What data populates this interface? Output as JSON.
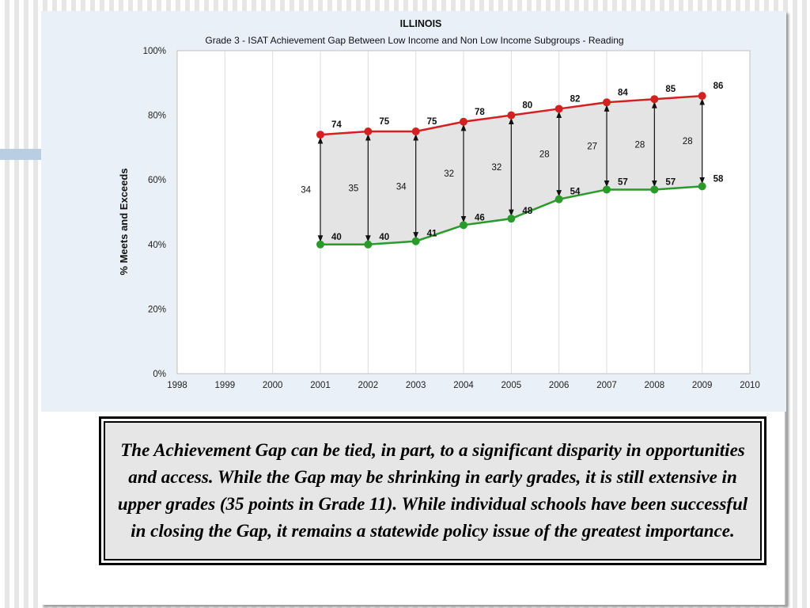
{
  "chart_data": {
    "type": "line",
    "title": "ILLINOIS",
    "subtitle": "Grade 3 - ISAT Achievement Gap  Between Low Income and Non Low Income Subgroups - Reading",
    "xlabel": "",
    "ylabel": "% Meets and Exceeds",
    "xlim": [
      1998,
      2010
    ],
    "ylim": [
      0,
      100
    ],
    "x_ticks": [
      "1998",
      "1999",
      "2000",
      "2001",
      "2002",
      "2003",
      "2004",
      "2005",
      "2006",
      "2007",
      "2008",
      "2009",
      "2010"
    ],
    "y_ticks": [
      "0%",
      "20%",
      "40%",
      "60%",
      "80%",
      "100%"
    ],
    "grid": "vertical",
    "x": [
      2001,
      2002,
      2003,
      2004,
      2005,
      2006,
      2007,
      2008,
      2009
    ],
    "series": [
      {
        "name": "",
        "color": "#d42020",
        "values": [
          74,
          75,
          75,
          78,
          80,
          82,
          84,
          85,
          86
        ]
      },
      {
        "name": "",
        "color": "#2a9a2a",
        "values": [
          40,
          40,
          41,
          46,
          48,
          54,
          57,
          57,
          58
        ]
      }
    ],
    "gap_labels": [
      "34",
      "35",
      "34",
      "32",
      "32",
      "28",
      "27",
      "28",
      "28"
    ],
    "fill_color": "#e4e4e4"
  },
  "caption": "The Achievement Gap can be tied, in part, to a significant disparity in opportunities and access.  While the Gap may be shrinking in early grades, it is still extensive in upper grades (35 points in Grade 11).  While individual schools have been successful in closing the Gap, it remains a statewide policy issue of the greatest importance."
}
